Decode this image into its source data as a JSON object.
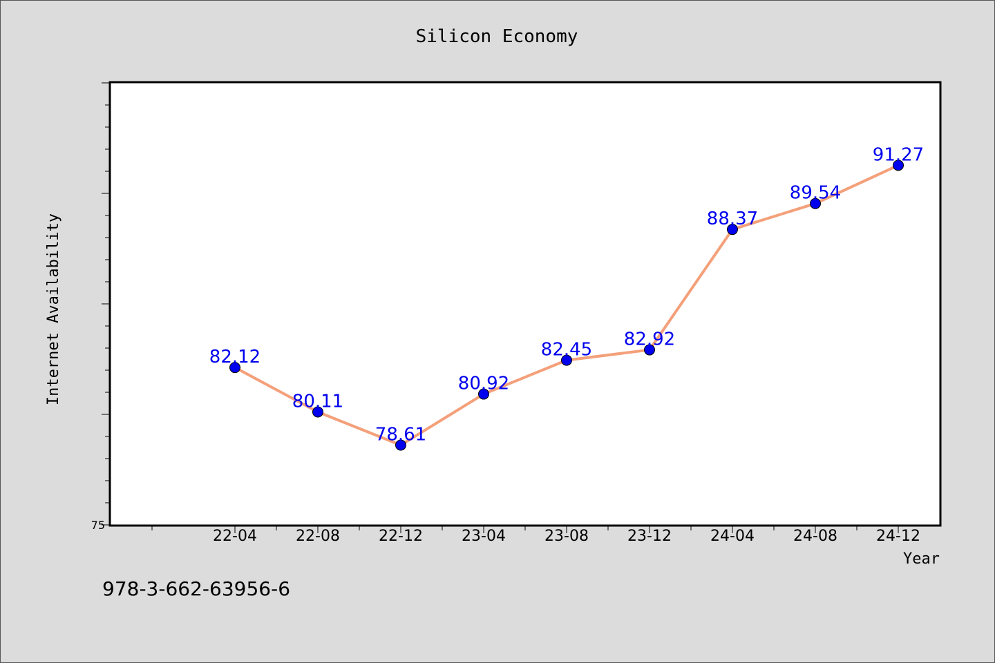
{
  "chart_data": {
    "type": "line",
    "title": "Silicon Economy",
    "xlabel": "Year",
    "ylabel": "Internet Availability",
    "categories": [
      "22-04",
      "22-08",
      "22-12",
      "23-04",
      "23-08",
      "23-12",
      "24-04",
      "24-08",
      "24-12"
    ],
    "series": [
      {
        "values": [
          82.12,
          80.11,
          78.61,
          80.92,
          82.45,
          82.92,
          88.37,
          89.54,
          91.27
        ],
        "line_color": "#f4a07a",
        "marker_color": "#0000ee",
        "label_color": "#0000ee"
      }
    ],
    "ylim": [
      75,
      95
    ],
    "ytick_labels": [
      "75"
    ],
    "grid": false,
    "legend": "none"
  },
  "footer": {
    "text": "978-3-662-63956-6"
  }
}
